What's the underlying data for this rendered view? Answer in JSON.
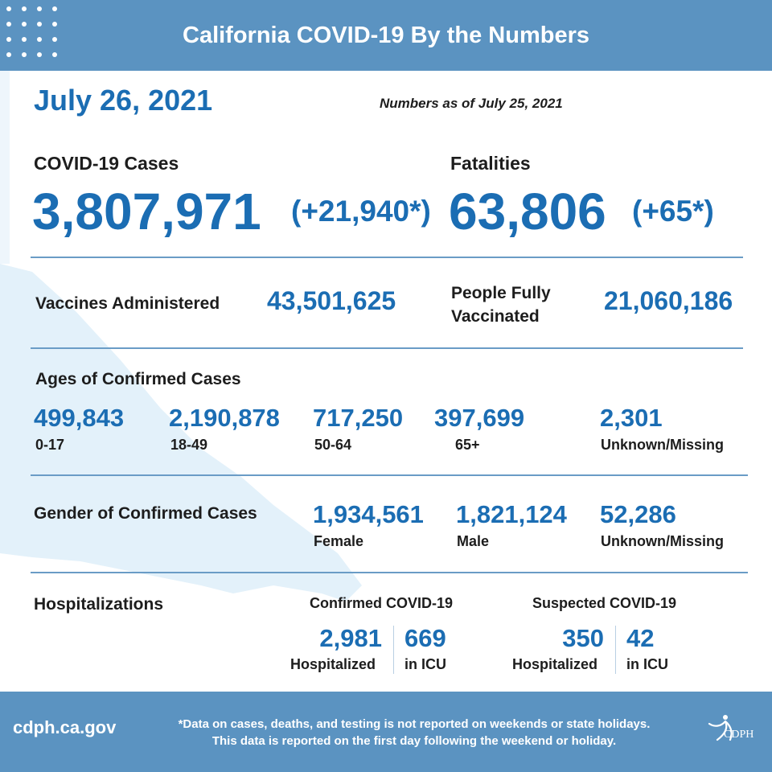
{
  "header": {
    "title": "California COVID-19 By the Numbers"
  },
  "date": "July 26, 2021",
  "as_of": "Numbers as of July 25, 2021",
  "cases": {
    "label": "COVID-19 Cases",
    "value": "3,807,971",
    "change": "(+21,940*)"
  },
  "fatalities": {
    "label": "Fatalities",
    "value": "63,806",
    "change": "(+65*)"
  },
  "vaccines": {
    "label": "Vaccines Administered",
    "value": "43,501,625"
  },
  "fully_vaccinated": {
    "label_line1": "People Fully",
    "label_line2": "Vaccinated",
    "value": "21,060,186"
  },
  "ages": {
    "label": "Ages of Confirmed Cases",
    "groups": [
      {
        "value": "499,843",
        "label": "0-17"
      },
      {
        "value": "2,190,878",
        "label": "18-49"
      },
      {
        "value": "717,250",
        "label": "50-64"
      },
      {
        "value": "397,699",
        "label": "65+"
      },
      {
        "value": "2,301",
        "label": "Unknown/Missing"
      }
    ]
  },
  "gender": {
    "label": "Gender of Confirmed Cases",
    "groups": [
      {
        "value": "1,934,561",
        "label": "Female"
      },
      {
        "value": "1,821,124",
        "label": "Male"
      },
      {
        "value": "52,286",
        "label": "Unknown/Missing"
      }
    ]
  },
  "hospitalizations": {
    "label": "Hospitalizations",
    "confirmed": {
      "title": "Confirmed COVID-19",
      "hospitalized": "2,981",
      "hospitalized_label": "Hospitalized",
      "icu": "669",
      "icu_label": "in ICU"
    },
    "suspected": {
      "title": "Suspected COVID-19",
      "hospitalized": "350",
      "hospitalized_label": "Hospitalized",
      "icu": "42",
      "icu_label": "in ICU"
    }
  },
  "footer": {
    "url": "cdph.ca.gov",
    "note_line1": "*Data on cases, deaths, and testing is not reported on weekends or state holidays.",
    "note_line2": "This data is reported on the first day following the weekend or holiday.",
    "logo_text": "CDPH"
  },
  "colors": {
    "header_bg": "#5b93c1",
    "accent": "#1b6db3",
    "map_tint": "#e3f1fa"
  }
}
